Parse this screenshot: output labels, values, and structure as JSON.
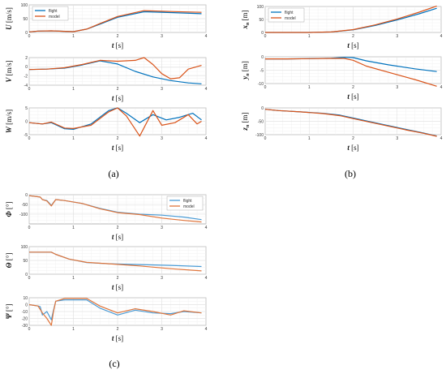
{
  "chart_data": [
    {
      "type": "line",
      "group": "a",
      "ylabel": "U",
      "yunit": "[m/s]",
      "xlabel": "t",
      "xunit": "[s]",
      "xlim": [
        0,
        4
      ],
      "ylim": [
        0,
        100
      ],
      "xticks": [
        "0",
        "1",
        "2",
        "3",
        "4"
      ],
      "yticks": [
        "0",
        "50",
        "100"
      ],
      "legend": {
        "position": "top-left",
        "items": [
          "flight",
          "model"
        ]
      },
      "series": [
        {
          "name": "flight",
          "color": "#0072BD",
          "x": [
            0,
            0.2,
            0.5,
            0.8,
            1.0,
            1.3,
            1.6,
            2.0,
            2.6,
            3.2,
            3.9
          ],
          "y": [
            2,
            5,
            6,
            4,
            3,
            12,
            30,
            55,
            75,
            72,
            68
          ]
        },
        {
          "name": "model",
          "color": "#D95319",
          "x": [
            0,
            0.2,
            0.5,
            0.8,
            1.0,
            1.3,
            1.6,
            2.0,
            2.6,
            3.2,
            3.9
          ],
          "y": [
            2,
            5,
            6,
            4,
            3,
            12,
            32,
            58,
            79,
            76,
            73
          ]
        }
      ]
    },
    {
      "type": "line",
      "group": "a",
      "ylabel": "V",
      "yunit": "[m/s]",
      "xlabel": "t",
      "xunit": "[s]",
      "xlim": [
        0,
        4
      ],
      "ylim": [
        -4,
        2
      ],
      "xticks": [
        "0",
        "1",
        "2",
        "3",
        "4"
      ],
      "yticks": [
        "2",
        "0",
        "-2",
        "-4"
      ],
      "series": [
        {
          "name": "flight",
          "color": "#0072BD",
          "x": [
            0,
            0.4,
            0.8,
            1.2,
            1.6,
            2.0,
            2.4,
            2.8,
            3.2,
            3.6,
            3.9
          ],
          "y": [
            -0.6,
            -0.5,
            -0.3,
            0.4,
            1.3,
            0.6,
            -1.0,
            -2.2,
            -3.0,
            -3.5,
            -3.7
          ]
        },
        {
          "name": "model",
          "color": "#D95319",
          "x": [
            0,
            0.4,
            0.8,
            1.2,
            1.6,
            2.0,
            2.4,
            2.6,
            2.8,
            3.0,
            3.2,
            3.4,
            3.6,
            3.9
          ],
          "y": [
            -0.6,
            -0.5,
            -0.2,
            0.5,
            1.4,
            1.2,
            1.4,
            2.0,
            0.5,
            -1.5,
            -2.6,
            -2.4,
            -0.5,
            0.3
          ]
        }
      ]
    },
    {
      "type": "line",
      "group": "a",
      "ylabel": "W",
      "yunit": "[m/s]",
      "xlabel": "t",
      "xunit": "[s]",
      "xlim": [
        0,
        4
      ],
      "ylim": [
        -5,
        5
      ],
      "xticks": [
        "0",
        "1",
        "2",
        "3",
        "4"
      ],
      "yticks": [
        "5",
        "0",
        "-5"
      ],
      "series": [
        {
          "name": "flight",
          "color": "#0072BD",
          "x": [
            0,
            0.3,
            0.5,
            0.8,
            1.0,
            1.4,
            1.8,
            2.0,
            2.2,
            2.5,
            2.8,
            3.1,
            3.4,
            3.7,
            3.9
          ],
          "y": [
            -0.5,
            -1.0,
            -0.5,
            -2.8,
            -3.0,
            -1.0,
            4.0,
            5.0,
            3.0,
            -0.5,
            2.5,
            0.5,
            1.5,
            3.0,
            0.5
          ]
        },
        {
          "name": "model",
          "color": "#D95319",
          "x": [
            0,
            0.3,
            0.5,
            0.8,
            1.0,
            1.4,
            1.8,
            2.0,
            2.2,
            2.5,
            2.8,
            3.0,
            3.3,
            3.6,
            3.8,
            3.9
          ],
          "y": [
            -0.5,
            -1.0,
            -0.3,
            -2.5,
            -2.7,
            -1.5,
            3.5,
            5.0,
            2.0,
            -5.5,
            4.0,
            -1.5,
            -0.5,
            2.5,
            -1.0,
            0.0
          ]
        }
      ]
    },
    {
      "type": "line",
      "group": "b",
      "ylabel": "xn",
      "yunit": "[m]",
      "xlabel": "t",
      "xunit": "[s]",
      "xlim": [
        0,
        4
      ],
      "ylim": [
        0,
        100
      ],
      "xticks": [
        "0",
        "1",
        "2",
        "3",
        "4"
      ],
      "yticks": [
        "0",
        "50",
        "100"
      ],
      "legend": {
        "position": "top-left",
        "items": [
          "flight",
          "model"
        ]
      },
      "series": [
        {
          "name": "flight",
          "color": "#0072BD",
          "x": [
            0,
            0.5,
            1.0,
            1.5,
            2.0,
            2.5,
            3.0,
            3.5,
            3.9
          ],
          "y": [
            0,
            0,
            0,
            2,
            10,
            27,
            48,
            72,
            93
          ]
        },
        {
          "name": "model",
          "color": "#D95319",
          "x": [
            0,
            0.5,
            1.0,
            1.5,
            2.0,
            2.5,
            3.0,
            3.5,
            3.9
          ],
          "y": [
            0,
            0,
            0,
            2,
            11,
            29,
            52,
            78,
            102
          ]
        }
      ]
    },
    {
      "type": "line",
      "group": "b",
      "ylabel": "yn",
      "yunit": "[m]",
      "xlabel": "t",
      "xunit": "[s]",
      "xlim": [
        0,
        4
      ],
      "ylim": [
        -10,
        0
      ],
      "xticks": [
        "0",
        "1",
        "2",
        "3",
        "4"
      ],
      "yticks": [
        "0",
        "-5",
        "-10"
      ],
      "series": [
        {
          "name": "flight",
          "color": "#0072BD",
          "x": [
            0,
            0.5,
            1.0,
            1.5,
            1.8,
            2.0,
            2.3,
            2.8,
            3.4,
            3.9
          ],
          "y": [
            -0.8,
            -0.8,
            -0.7,
            -0.5,
            -0.2,
            -0.3,
            -1.5,
            -3.0,
            -4.5,
            -5.5
          ]
        },
        {
          "name": "model",
          "color": "#D95319",
          "x": [
            0,
            0.5,
            1.0,
            1.5,
            1.8,
            2.0,
            2.3,
            2.8,
            3.4,
            3.9
          ],
          "y": [
            -0.8,
            -0.8,
            -0.7,
            -0.6,
            -0.6,
            -1.3,
            -3.5,
            -5.8,
            -8.5,
            -11.0
          ]
        }
      ]
    },
    {
      "type": "line",
      "group": "b",
      "ylabel": "zn",
      "yunit": "[m]",
      "xlabel": "t",
      "xunit": "[s]",
      "xlim": [
        0,
        4
      ],
      "ylim": [
        -100,
        0
      ],
      "xticks": [
        "0",
        "1",
        "2",
        "3",
        "4"
      ],
      "yticks": [
        "0",
        "-50",
        "-100"
      ],
      "series": [
        {
          "name": "flight",
          "color": "#0072BD",
          "x": [
            0,
            0.3,
            0.8,
            1.3,
            1.7,
            2.0,
            2.4,
            2.8,
            3.2,
            3.6,
            3.9
          ],
          "y": [
            -5,
            -10,
            -15,
            -20,
            -27,
            -38,
            -52,
            -66,
            -80,
            -94,
            -105
          ]
        },
        {
          "name": "model",
          "color": "#D95319",
          "x": [
            0,
            0.3,
            0.8,
            1.3,
            1.7,
            2.0,
            2.4,
            2.8,
            3.2,
            3.6,
            3.9
          ],
          "y": [
            -5,
            -10,
            -15,
            -21,
            -29,
            -40,
            -54,
            -68,
            -82,
            -95,
            -106
          ]
        }
      ]
    },
    {
      "type": "line",
      "group": "c",
      "ylabel": "Φ",
      "yunit": "[°]",
      "xlabel": "t",
      "xunit": "[s]",
      "xlim": [
        0,
        4
      ],
      "ylim": [
        -150,
        0
      ],
      "xticks": [
        "0",
        "1",
        "2",
        "3",
        "4"
      ],
      "yticks": [
        "0",
        "-50",
        "-100"
      ],
      "legend": {
        "position": "top-right",
        "items": [
          "flight",
          "model"
        ]
      },
      "series": [
        {
          "name": "flight",
          "color": "#4A9BD5",
          "x": [
            0,
            0.25,
            0.3,
            0.4,
            0.5,
            0.6,
            0.8,
            1.2,
            1.6,
            2.0,
            2.5,
            3.0,
            3.5,
            3.9
          ],
          "y": [
            -5,
            -12,
            -25,
            -30,
            -55,
            -25,
            -30,
            -45,
            -70,
            -90,
            -100,
            -105,
            -115,
            -128
          ]
        },
        {
          "name": "model",
          "color": "#E0753B",
          "x": [
            0,
            0.25,
            0.3,
            0.4,
            0.5,
            0.6,
            0.8,
            1.2,
            1.6,
            2.0,
            2.5,
            3.0,
            3.5,
            3.9
          ],
          "y": [
            -5,
            -12,
            -25,
            -32,
            -58,
            -25,
            -30,
            -45,
            -72,
            -92,
            -102,
            -120,
            -132,
            -140
          ]
        }
      ]
    },
    {
      "type": "line",
      "group": "c",
      "ylabel": "Θ",
      "yunit": "[°]",
      "xlabel": "t",
      "xunit": "[s]",
      "xlim": [
        0,
        4
      ],
      "ylim": [
        0,
        100
      ],
      "xticks": [
        "0",
        "1",
        "2",
        "3",
        "4"
      ],
      "yticks": [
        "0",
        "50",
        "100"
      ],
      "series": [
        {
          "name": "flight",
          "color": "#4A9BD5",
          "x": [
            0,
            0.5,
            0.6,
            0.9,
            1.3,
            1.8,
            2.5,
            3.2,
            3.9
          ],
          "y": [
            80,
            80,
            72,
            55,
            42,
            38,
            35,
            32,
            28
          ]
        },
        {
          "name": "model",
          "color": "#E0753B",
          "x": [
            0,
            0.5,
            0.6,
            0.9,
            1.3,
            1.8,
            2.5,
            3.2,
            3.9
          ],
          "y": [
            80,
            80,
            72,
            55,
            43,
            38,
            30,
            20,
            12
          ]
        }
      ]
    },
    {
      "type": "line",
      "group": "c",
      "ylabel": "Ψ",
      "yunit": "[°]",
      "xlabel": "t",
      "xunit": "[s]",
      "xlim": [
        0,
        4
      ],
      "ylim": [
        -30,
        10
      ],
      "xticks": [
        "0",
        "1",
        "2",
        "3",
        "4"
      ],
      "yticks": [
        "10",
        "0",
        "-10",
        "-20",
        "-30"
      ],
      "series": [
        {
          "name": "flight",
          "color": "#4A9BD5",
          "x": [
            0,
            0.2,
            0.25,
            0.3,
            0.4,
            0.5,
            0.55,
            0.6,
            0.8,
            1.0,
            1.3,
            1.6,
            2.0,
            2.4,
            2.8,
            3.2,
            3.5,
            3.9
          ],
          "y": [
            0,
            -2,
            -3,
            -15,
            -10,
            -22,
            -8,
            5,
            7,
            7,
            7,
            -5,
            -15,
            -8,
            -12,
            -13,
            -10,
            -12
          ]
        },
        {
          "name": "model",
          "color": "#E0753B",
          "x": [
            0,
            0.2,
            0.3,
            0.4,
            0.5,
            0.55,
            0.6,
            0.8,
            1.0,
            1.3,
            1.6,
            2.0,
            2.4,
            2.8,
            3.2,
            3.5,
            3.9
          ],
          "y": [
            0,
            -2,
            -12,
            -20,
            -30,
            -10,
            5,
            9,
            9,
            9,
            -2,
            -12,
            -6,
            -10,
            -15,
            -9,
            -12
          ]
        }
      ]
    }
  ],
  "panel_labels": [
    "(a)",
    "(b)",
    "(c)"
  ]
}
